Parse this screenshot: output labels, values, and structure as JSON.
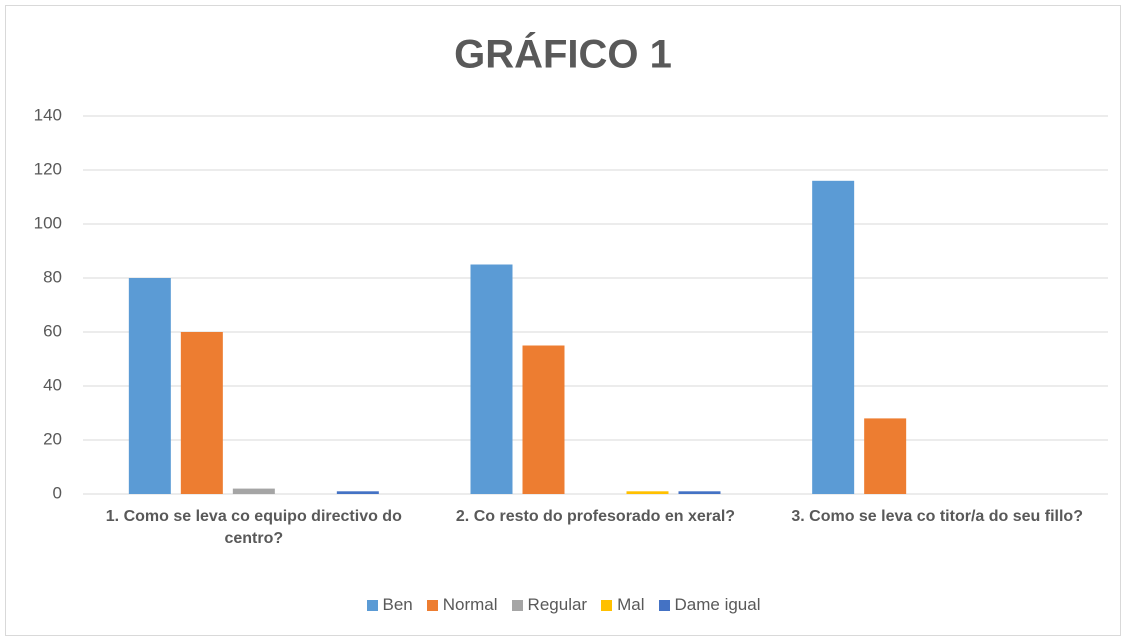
{
  "chart_data": {
    "type": "bar",
    "title": "GRÁFICO 1",
    "categories": [
      "1. Como se leva co equipo directivo do centro?",
      "2. Co resto do profesorado en xeral?",
      "3. Como se leva co titor/a do seu fillo?"
    ],
    "series": [
      {
        "name": "Ben",
        "color": "#5b9bd5",
        "values": [
          80,
          85,
          116
        ]
      },
      {
        "name": "Normal",
        "color": "#ed7d31",
        "values": [
          60,
          55,
          28
        ]
      },
      {
        "name": "Regular",
        "color": "#a5a5a5",
        "values": [
          2,
          0,
          0
        ]
      },
      {
        "name": "Mal",
        "color": "#ffc000",
        "values": [
          0,
          1,
          0
        ]
      },
      {
        "name": "Dame igual",
        "color": "#4472c4",
        "values": [
          1,
          1,
          0
        ]
      }
    ],
    "ylim": [
      0,
      140
    ],
    "yticks": [
      0,
      20,
      40,
      60,
      80,
      100,
      120,
      140
    ],
    "grid": true,
    "legend": "bottom"
  }
}
